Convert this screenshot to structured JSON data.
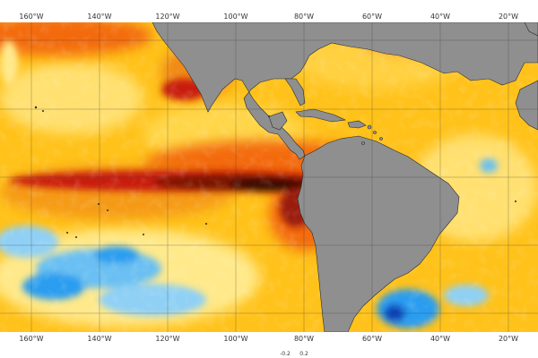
{
  "map": {
    "type": "sea surface temperature anomaly map",
    "projection": "equirectangular",
    "region": "Eastern Pacific and Atlantic, Americas",
    "longitude_range_deg": [
      -168,
      -10
    ],
    "colors": {
      "land": "#8f8f8f",
      "graticule": "#3a3a3a",
      "strong_warm": "#3a0a04",
      "warm": "#c81e0a",
      "mild_warm": "#f36a10",
      "neutral_warm": "#ffc21a",
      "neutral": "#ffe98a",
      "cool": "#2a9df0",
      "cold": "#0b3fb8"
    },
    "features": [
      {
        "name": "equatorial-warm-tongue",
        "description_shown": "dark red/black band along equator in eastern Pacific"
      },
      {
        "name": "cool-patch-south-pacific",
        "description_shown": "blue area south-west"
      },
      {
        "name": "cool-patch-south-atlantic",
        "description_shown": "blue area off Argentina"
      }
    ],
    "top_axis_labels": [
      "160°W",
      "140°W",
      "120°W",
      "100°W",
      "80°W",
      "60°W",
      "40°W",
      "20°W"
    ],
    "bottom_axis_labels": [
      "160°W",
      "140°W",
      "120°W",
      "100°W",
      "80°W",
      "60°W",
      "40°W",
      "20°W"
    ],
    "colorbar": {
      "labels": [
        "-0.2",
        "0.2"
      ]
    }
  }
}
